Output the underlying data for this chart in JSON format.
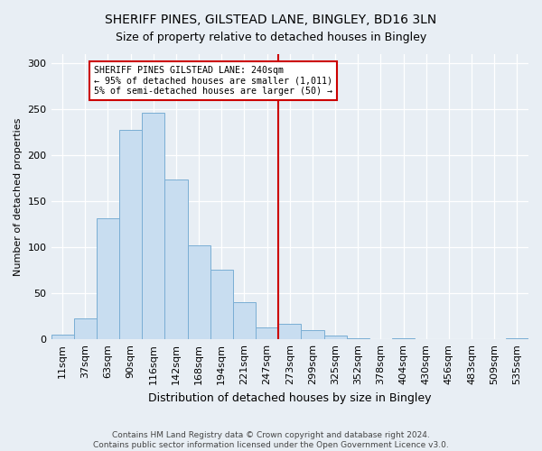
{
  "title": "SHERIFF PINES, GILSTEAD LANE, BINGLEY, BD16 3LN",
  "subtitle": "Size of property relative to detached houses in Bingley",
  "xlabel": "Distribution of detached houses by size in Bingley",
  "ylabel": "Number of detached properties",
  "bar_labels": [
    "11sqm",
    "37sqm",
    "63sqm",
    "90sqm",
    "116sqm",
    "142sqm",
    "168sqm",
    "194sqm",
    "221sqm",
    "247sqm",
    "273sqm",
    "299sqm",
    "325sqm",
    "352sqm",
    "378sqm",
    "404sqm",
    "430sqm",
    "456sqm",
    "483sqm",
    "509sqm",
    "535sqm"
  ],
  "bar_values": [
    5,
    23,
    132,
    228,
    246,
    174,
    102,
    76,
    40,
    13,
    17,
    10,
    4,
    1,
    0,
    1,
    0,
    0,
    0,
    0,
    1
  ],
  "bar_color": "#c8ddf0",
  "bar_edge_color": "#7aaed4",
  "vline_x_label": "247sqm",
  "vline_color": "#cc0000",
  "annotation_title": "SHERIFF PINES GILSTEAD LANE: 240sqm",
  "annotation_line1": "← 95% of detached houses are smaller (1,011)",
  "annotation_line2": "5% of semi-detached houses are larger (50) →",
  "annotation_box_edgecolor": "#cc0000",
  "ylim": [
    0,
    310
  ],
  "yticks": [
    0,
    50,
    100,
    150,
    200,
    250,
    300
  ],
  "footer1": "Contains HM Land Registry data © Crown copyright and database right 2024.",
  "footer2": "Contains public sector information licensed under the Open Government Licence v3.0.",
  "background_color": "#e8eef4",
  "plot_bg_color": "#e8eef4",
  "title_fontsize": 10,
  "subtitle_fontsize": 9,
  "ylabel_fontsize": 8,
  "xlabel_fontsize": 9,
  "tick_fontsize": 8,
  "footer_fontsize": 6.5
}
